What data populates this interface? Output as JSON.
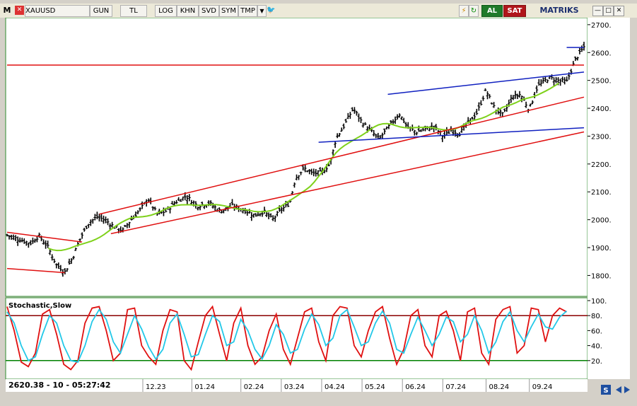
{
  "toolbar": {
    "logo": "M",
    "close_glyph": "✕",
    "symbol": "XAUUSD",
    "buttons": [
      "GUN",
      "TL",
      "LOG",
      "KHN",
      "SVD",
      "SYM",
      "TMP"
    ],
    "dropdown_glyph": "▼",
    "twitter_glyph": "🐦",
    "lightning_glyph": "⚡",
    "refresh_glyph": "↻",
    "buy_label": "AL",
    "sell_label": "SAT",
    "brand": "MATRIKS",
    "window_controls": [
      "—",
      "□",
      "✕"
    ]
  },
  "status": {
    "readout": "2620.38 - 10 - 05:27:42",
    "scroll_glyph": "S"
  },
  "colors": {
    "price_bar": "#000000",
    "ma_line": "#7fd11b",
    "trend_red": "#e01010",
    "trend_blue": "#1020c0",
    "stoch_k": "#e01010",
    "stoch_d": "#22c8e8",
    "stoch_upper": "#8b0000",
    "stoch_lower": "#008000",
    "panel_border": "#2e8b2e"
  },
  "chart_data": [
    {
      "type": "candlestick",
      "title": "",
      "x_tick_labels": [
        "12.23",
        "01.24",
        "02.24",
        "03.24",
        "04.24",
        "05.24",
        "06.24",
        "07.24",
        "08.24",
        "09.24"
      ],
      "y_tick_labels": [
        "1800.",
        "1900.",
        "2000.",
        "2100.",
        "2200.",
        "2300.",
        "2400.",
        "2500.",
        "2600.",
        "2700."
      ],
      "ylim": [
        1730,
        2720
      ],
      "grid": false,
      "price_path": [
        [
          0,
          1945
        ],
        [
          0.02,
          1930
        ],
        [
          0.04,
          1915
        ],
        [
          0.055,
          1942
        ],
        [
          0.07,
          1905
        ],
        [
          0.085,
          1840
        ],
        [
          0.1,
          1812
        ],
        [
          0.115,
          1870
        ],
        [
          0.125,
          1925
        ],
        [
          0.14,
          1985
        ],
        [
          0.155,
          2010
        ],
        [
          0.17,
          2000
        ],
        [
          0.185,
          1975
        ],
        [
          0.2,
          1960
        ],
        [
          0.215,
          2000
        ],
        [
          0.23,
          2035
        ],
        [
          0.245,
          2075
        ],
        [
          0.26,
          2020
        ],
        [
          0.275,
          2030
        ],
        [
          0.29,
          2060
        ],
        [
          0.31,
          2085
        ],
        [
          0.33,
          2050
        ],
        [
          0.35,
          2060
        ],
        [
          0.37,
          2030
        ],
        [
          0.39,
          2050
        ],
        [
          0.41,
          2035
        ],
        [
          0.43,
          2015
        ],
        [
          0.445,
          2030
        ],
        [
          0.46,
          2000
        ],
        [
          0.475,
          2035
        ],
        [
          0.49,
          2060
        ],
        [
          0.5,
          2150
        ],
        [
          0.515,
          2185
        ],
        [
          0.53,
          2165
        ],
        [
          0.545,
          2170
        ],
        [
          0.56,
          2200
        ],
        [
          0.57,
          2290
        ],
        [
          0.585,
          2340
        ],
        [
          0.6,
          2400
        ],
        [
          0.615,
          2350
        ],
        [
          0.63,
          2320
        ],
        [
          0.645,
          2290
        ],
        [
          0.66,
          2330
        ],
        [
          0.68,
          2380
        ],
        [
          0.695,
          2330
        ],
        [
          0.71,
          2315
        ],
        [
          0.725,
          2325
        ],
        [
          0.74,
          2335
        ],
        [
          0.755,
          2300
        ],
        [
          0.77,
          2320
        ],
        [
          0.785,
          2310
        ],
        [
          0.8,
          2350
        ],
        [
          0.815,
          2385
        ],
        [
          0.83,
          2465
        ],
        [
          0.845,
          2400
        ],
        [
          0.86,
          2375
        ],
        [
          0.875,
          2440
        ],
        [
          0.89,
          2450
        ],
        [
          0.905,
          2395
        ],
        [
          0.92,
          2480
        ],
        [
          0.94,
          2510
        ],
        [
          0.955,
          2500
        ],
        [
          0.97,
          2495
        ],
        [
          0.985,
          2575
        ],
        [
          1.0,
          2620
        ]
      ],
      "last_price": 2620.38
    },
    {
      "type": "line",
      "title": "Stochastic,Slow",
      "y_tick_labels": [
        "100.",
        "80.",
        "60.",
        "40.",
        "20."
      ],
      "ylim": [
        0,
        100
      ],
      "levels": [
        80,
        20
      ],
      "series": [
        {
          "values": [
            92,
            60,
            18,
            12,
            30,
            82,
            88,
            55,
            15,
            8,
            20,
            70,
            90,
            92,
            60,
            20,
            30,
            88,
            90,
            40,
            25,
            15,
            60,
            88,
            85,
            20,
            8,
            45,
            80,
            92,
            55,
            20,
            70,
            90,
            40,
            15,
            25,
            60,
            82,
            35,
            15,
            50,
            85,
            90,
            45,
            20,
            80,
            92,
            90,
            40,
            25,
            60,
            85,
            92,
            50,
            15,
            35,
            80,
            88,
            40,
            25,
            80,
            86,
            60,
            20,
            85,
            90,
            30,
            15,
            75,
            88,
            92,
            30,
            40,
            90,
            88,
            45,
            80,
            90,
            85
          ]
        },
        {
          "values": [
            85,
            70,
            40,
            20,
            25,
            55,
            80,
            70,
            40,
            20,
            18,
            40,
            72,
            88,
            75,
            45,
            30,
            55,
            80,
            62,
            38,
            22,
            35,
            70,
            82,
            55,
            25,
            28,
            55,
            80,
            72,
            40,
            45,
            75,
            60,
            35,
            22,
            40,
            68,
            55,
            30,
            35,
            62,
            82,
            68,
            40,
            50,
            80,
            88,
            65,
            40,
            45,
            70,
            86,
            70,
            35,
            30,
            55,
            78,
            60,
            40,
            55,
            78,
            72,
            45,
            55,
            80,
            60,
            30,
            45,
            72,
            85,
            60,
            45,
            65,
            82,
            65,
            62,
            78,
            86
          ]
        }
      ]
    }
  ]
}
